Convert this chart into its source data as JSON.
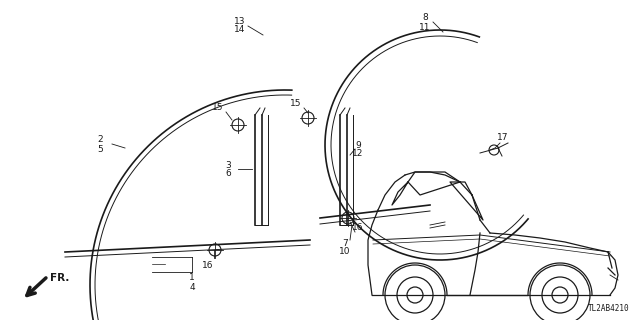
{
  "bg_color": "#ffffff",
  "line_color": "#1a1a1a",
  "diagram_code": "TL2AB4210",
  "figsize": [
    6.4,
    3.2
  ],
  "dpi": 100
}
